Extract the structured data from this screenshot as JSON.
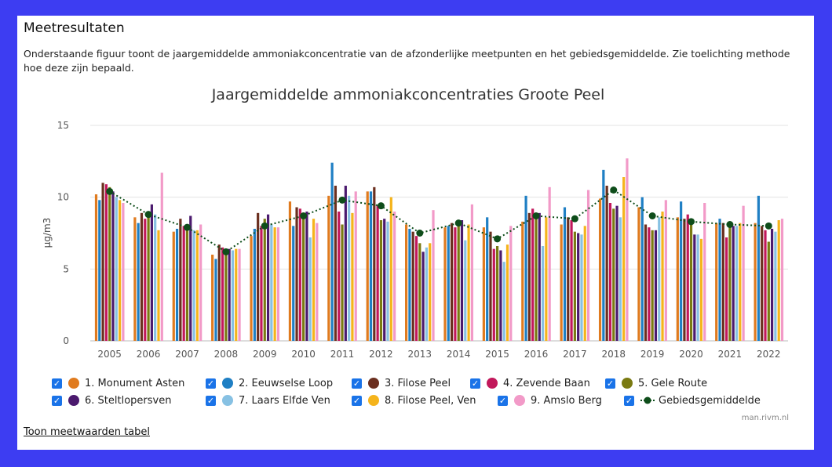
{
  "heading": "Meetresultaten",
  "intro": "Onderstaande figuur toont de jaargemiddelde ammoniakconcentratie van de afzonderlijke meetpunten en het gebiedsgemiddelde. Zie toelichting methode hoe deze zijn bepaald.",
  "credit": "man.rivm.nl",
  "table_link": "Toon meetwaarden tabel",
  "check_mark": "✓",
  "chart_data": {
    "type": "bar",
    "title": "Jaargemiddelde ammoniakconcentraties Groote Peel",
    "xlabel": "",
    "ylabel": "µg/m3",
    "ylim": [
      0,
      15
    ],
    "yticks": [
      0,
      5,
      10,
      15
    ],
    "grid": true,
    "legend_position": "bottom",
    "categories": [
      "2005",
      "2006",
      "2007",
      "2008",
      "2009",
      "2010",
      "2011",
      "2012",
      "2013",
      "2014",
      "2015",
      "2016",
      "2017",
      "2018",
      "2019",
      "2020",
      "2021",
      "2022"
    ],
    "series": [
      {
        "name": "1. Monument Asten",
        "color": "#e07b1f",
        "values": [
          10.2,
          8.6,
          7.6,
          6.0,
          7.3,
          9.7,
          10.1,
          10.4,
          8.1,
          7.9,
          7.9,
          8.3,
          8.1,
          9.9,
          9.3,
          8.6,
          8.2,
          8.2
        ]
      },
      {
        "name": "2. Eeuwselse Loop",
        "color": "#1f7fc4",
        "values": [
          9.8,
          8.2,
          7.8,
          5.7,
          7.8,
          8.0,
          12.4,
          10.4,
          7.8,
          8.0,
          8.6,
          10.1,
          9.3,
          11.9,
          10.0,
          9.7,
          8.5,
          10.1
        ]
      },
      {
        "name": "3. Filose Peel",
        "color": "#6b2f1f",
        "values": [
          11.0,
          8.9,
          8.5,
          6.7,
          8.9,
          9.3,
          10.8,
          10.7,
          7.6,
          8.2,
          7.6,
          8.9,
          8.6,
          10.8,
          8.1,
          8.5,
          8.2,
          8.0
        ]
      },
      {
        "name": "4. Zevende Baan",
        "color": "#c2185b",
        "values": [
          10.9,
          8.5,
          8.0,
          6.5,
          8.0,
          9.2,
          9.0,
          9.4,
          7.3,
          7.9,
          6.4,
          9.2,
          8.4,
          9.6,
          7.9,
          8.8,
          7.2,
          7.7
        ]
      },
      {
        "name": "5. Gele Route",
        "color": "#7a7a12",
        "values": [
          10.7,
          8.8,
          7.7,
          6.3,
          8.5,
          8.7,
          8.1,
          8.4,
          6.8,
          8.0,
          6.6,
          8.5,
          7.6,
          9.2,
          7.7,
          8.5,
          8.0,
          6.9
        ]
      },
      {
        "name": "6. Steltlopersven",
        "color": "#4b1a6e",
        "values": [
          10.4,
          9.5,
          8.7,
          6.4,
          8.8,
          9.0,
          10.8,
          8.5,
          6.2,
          8.4,
          6.3,
          8.9,
          7.5,
          9.4,
          7.7,
          7.4,
          8.0,
          7.8
        ]
      },
      {
        "name": "7. Laars Elfde Ven",
        "color": "#87c1e3",
        "values": [
          10.0,
          8.8,
          7.7,
          6.3,
          8.1,
          7.2,
          10.1,
          8.3,
          6.5,
          7.0,
          5.5,
          6.6,
          7.4,
          8.6,
          8.6,
          7.4,
          8.0,
          7.6
        ]
      },
      {
        "name": "8. Filose Peel, Ven",
        "color": "#f5b41c",
        "values": [
          9.8,
          7.7,
          7.7,
          6.4,
          7.9,
          8.5,
          8.9,
          10.0,
          6.8,
          8.1,
          6.7,
          8.6,
          8.0,
          11.4,
          9.0,
          7.1,
          8.2,
          8.4
        ]
      },
      {
        "name": "9. Amslo Berg",
        "color": "#f29ac8",
        "values": [
          9.6,
          11.7,
          8.1,
          6.4,
          7.9,
          8.2,
          10.4,
          9.0,
          9.1,
          9.5,
          8.0,
          10.7,
          10.5,
          12.7,
          9.8,
          9.6,
          9.4,
          8.5
        ]
      },
      {
        "name": "Gebiedsgemiddelde",
        "color": "#0e4d1a",
        "line": true,
        "values": [
          10.4,
          8.8,
          7.9,
          6.2,
          8.0,
          8.7,
          9.8,
          9.4,
          7.5,
          8.2,
          7.1,
          8.7,
          8.5,
          10.5,
          8.7,
          8.3,
          8.1,
          8.0
        ]
      }
    ]
  }
}
